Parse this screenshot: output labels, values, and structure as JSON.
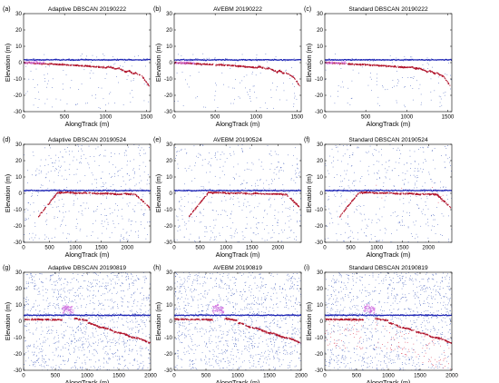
{
  "figure": {
    "ylabel": "Elevation (m)",
    "xlabel": "AlongTrack (m)"
  },
  "colors": {
    "noise": "#3a56b8",
    "ground": "#b0122a",
    "surface": "#1c24b4",
    "magenta": "#d070e0"
  },
  "chart_data": [
    {
      "type": "scatter",
      "letter": "(a)",
      "title": "Adaptive DBSCAN 20190222",
      "xlabel": "AlongTrack (m)",
      "ylabel": "Elevation (m)",
      "xlim": [
        0,
        1550
      ],
      "ylim": [
        -30,
        30
      ],
      "xticks": [
        0,
        500,
        1000,
        1500
      ],
      "yticks": [
        -30,
        -20,
        -10,
        0,
        10,
        20,
        30
      ],
      "profile": "p1",
      "surface_y": 2,
      "noise_density": "low",
      "variant": "adaptive"
    },
    {
      "type": "scatter",
      "letter": "(b)",
      "title": "AVEBM 20190222",
      "xlabel": "AlongTrack (m)",
      "ylabel": "Elevation (m)",
      "xlim": [
        0,
        1550
      ],
      "ylim": [
        -30,
        30
      ],
      "xticks": [
        0,
        500,
        1000,
        1500
      ],
      "yticks": [
        -30,
        -20,
        -10,
        0,
        10,
        20,
        30
      ],
      "profile": "p1",
      "surface_y": 2,
      "noise_density": "low",
      "variant": "avebm"
    },
    {
      "type": "scatter",
      "letter": "(c)",
      "title": "Standard DBSCAN 20190222",
      "xlabel": "AlongTrack (m)",
      "ylabel": "Elevation (m)",
      "xlim": [
        0,
        1550
      ],
      "ylim": [
        -30,
        30
      ],
      "xticks": [
        0,
        500,
        1000,
        1500
      ],
      "yticks": [
        -30,
        -20,
        -10,
        0,
        10,
        20,
        30
      ],
      "profile": "p1",
      "surface_y": 2,
      "noise_density": "low",
      "variant": "standard"
    },
    {
      "type": "scatter",
      "letter": "(d)",
      "title": "Adaptive DBSCAN 20190524",
      "xlabel": "AlongTrack (m)",
      "ylabel": "Elevation (m)",
      "xlim": [
        0,
        2450
      ],
      "ylim": [
        -30,
        30
      ],
      "xticks": [
        0,
        500,
        1000,
        1500,
        2000
      ],
      "yticks": [
        -30,
        -20,
        -10,
        0,
        10,
        20,
        30
      ],
      "profile": "p2",
      "surface_y": 2,
      "noise_density": "medium",
      "variant": "adaptive"
    },
    {
      "type": "scatter",
      "letter": "(e)",
      "title": "AVEBM 20190524",
      "xlabel": "AlongTrack (m)",
      "ylabel": "Elevation (m)",
      "xlim": [
        0,
        2450
      ],
      "ylim": [
        -30,
        30
      ],
      "xticks": [
        0,
        500,
        1000,
        1500,
        2000
      ],
      "yticks": [
        -30,
        -20,
        -10,
        0,
        10,
        20,
        30
      ],
      "profile": "p2",
      "surface_y": 2,
      "noise_density": "medium",
      "variant": "avebm"
    },
    {
      "type": "scatter",
      "letter": "(f)",
      "title": "Standard DBSCAN 20190524",
      "xlabel": "AlongTrack (m)",
      "ylabel": "Elevation (m)",
      "xlim": [
        0,
        2450
      ],
      "ylim": [
        -30,
        30
      ],
      "xticks": [
        0,
        500,
        1000,
        1500,
        2000
      ],
      "yticks": [
        -30,
        -20,
        -10,
        0,
        10,
        20,
        30
      ],
      "profile": "p2",
      "surface_y": 2,
      "noise_density": "medium",
      "variant": "standard"
    },
    {
      "type": "scatter",
      "letter": "(g)",
      "title": "Adaptive DBSCAN 20190819",
      "xlabel": "AlongTrack (m)",
      "ylabel": "Elevation (m)",
      "xlim": [
        0,
        2000
      ],
      "ylim": [
        -30,
        30
      ],
      "xticks": [
        0,
        500,
        1000,
        1500,
        2000
      ],
      "yticks": [
        -30,
        -20,
        -10,
        0,
        10,
        20,
        30
      ],
      "profile": "p3",
      "surface_y": 4,
      "noise_density": "high",
      "variant": "adaptive"
    },
    {
      "type": "scatter",
      "letter": "(h)",
      "title": "AVEBM 20190819",
      "xlabel": "AlongTrack (m)",
      "ylabel": "Elevation (m)",
      "xlim": [
        0,
        2000
      ],
      "ylim": [
        -30,
        30
      ],
      "xticks": [
        0,
        500,
        1000,
        1500,
        2000
      ],
      "yticks": [
        -30,
        -20,
        -10,
        0,
        10,
        20,
        30
      ],
      "profile": "p3",
      "surface_y": 4,
      "noise_density": "high",
      "variant": "avebm"
    },
    {
      "type": "scatter",
      "letter": "(i)",
      "title": "Standard DBSCAN 20190819",
      "xlabel": "AlongTrack (m)",
      "ylabel": "Elevation (m)",
      "xlim": [
        0,
        2000
      ],
      "ylim": [
        -30,
        30
      ],
      "xticks": [
        0,
        500,
        1000,
        1500,
        2000
      ],
      "yticks": [
        -30,
        -20,
        -10,
        0,
        10,
        20,
        30
      ],
      "profile": "p3",
      "surface_y": 4,
      "noise_density": "high",
      "variant": "standard"
    }
  ]
}
